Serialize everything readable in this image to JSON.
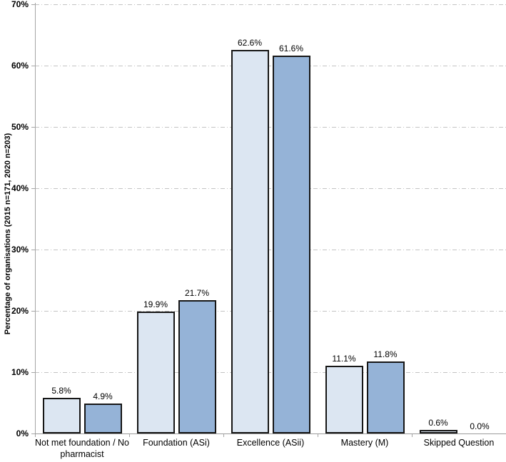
{
  "figure": {
    "background": "#ffffff"
  },
  "chart_data": {
    "type": "bar",
    "title": "",
    "xlabel": "",
    "ylabel": "Percentage of organisations (2015 n=171, 2020 n=203)",
    "ylim": [
      0,
      70
    ],
    "ytick_interval": 10,
    "ytick_labels": [
      "0%",
      "10%",
      "20%",
      "30%",
      "40%",
      "50%",
      "60%",
      "70%"
    ],
    "grid": "horizontal-dash-dot",
    "legend": "none",
    "categories": [
      "Not met foundation / No pharmacist",
      "Foundation (ASi)",
      "Excellence (ASii)",
      "Mastery (M)",
      "Skipped Question"
    ],
    "series": [
      {
        "name": "2015 (n=171)",
        "color": "#dce6f2",
        "border": "#161616",
        "values": [
          5.8,
          19.9,
          62.6,
          11.1,
          0.6
        ],
        "labels": [
          "5.8%",
          "19.9%",
          "62.6%",
          "11.1%",
          "0.6%"
        ]
      },
      {
        "name": "2020 (n=203)",
        "color": "#95b3d7",
        "border": "#161616",
        "values": [
          4.9,
          21.7,
          61.6,
          11.8,
          0.0
        ],
        "labels": [
          "4.9%",
          "21.7%",
          "61.6%",
          "11.8%",
          "0.0%"
        ]
      }
    ],
    "axis_color": "#a6a6a6",
    "gridline_color": "#c3c3c3"
  }
}
